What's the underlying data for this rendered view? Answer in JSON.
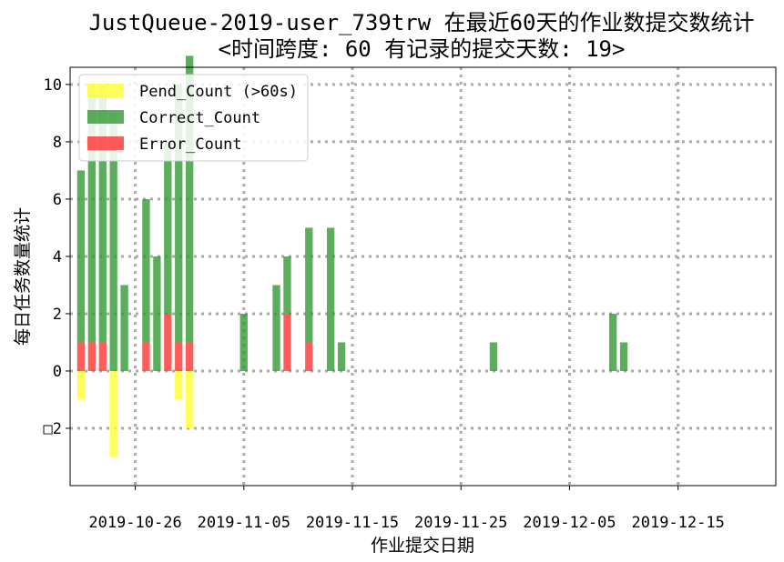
{
  "chart_data": {
    "type": "bar",
    "title": "JustQueue-2019-user_739trw 在最近60天的作业数提交数统计",
    "subtitle": "<时间跨度: 60  有记录的提交天数: 19>",
    "xlabel": "作业提交日期",
    "ylabel": "每日任务数量统计",
    "x_type": "date",
    "xlim": [
      "2019-10-20",
      "2019-12-24"
    ],
    "ylim": [
      -4,
      10.6
    ],
    "x_ticks": [
      "2019-10-26",
      "2019-11-05",
      "2019-11-15",
      "2019-11-25",
      "2019-12-05",
      "2019-12-15"
    ],
    "y_ticks": [
      -2,
      0,
      2,
      4,
      6,
      8,
      10
    ],
    "y_tick_labels": [
      "□2",
      "0",
      "2",
      "4",
      "6",
      "8",
      "10"
    ],
    "grid": true,
    "legend_position": "top-left",
    "x": [
      "2019-10-21",
      "2019-10-22",
      "2019-10-23",
      "2019-10-24",
      "2019-10-25",
      "2019-10-27",
      "2019-10-28",
      "2019-10-29",
      "2019-10-30",
      "2019-10-31",
      "2019-11-05",
      "2019-11-08",
      "2019-11-09",
      "2019-11-11",
      "2019-11-13",
      "2019-11-14",
      "2019-11-28",
      "2019-12-09",
      "2019-12-10"
    ],
    "series": [
      {
        "name": "Pend_Count (>60s)",
        "color": "#ffff33",
        "values": [
          -1,
          0,
          0,
          -3,
          0,
          0,
          0,
          0,
          -1,
          -2,
          0,
          0,
          0,
          0,
          0,
          0,
          0,
          0,
          0
        ]
      },
      {
        "name": "Correct_Count",
        "color": "#339933",
        "values": [
          6,
          9,
          9,
          9,
          3,
          5,
          4,
          6,
          9,
          10,
          2,
          3,
          2,
          4,
          5,
          1,
          1,
          2,
          1
        ]
      },
      {
        "name": "Error_Count",
        "color": "#ff3333",
        "values": [
          1,
          1,
          1,
          0,
          0,
          1,
          0,
          2,
          1,
          1,
          0,
          0,
          2,
          1,
          0,
          0,
          0,
          0,
          0
        ]
      }
    ]
  }
}
